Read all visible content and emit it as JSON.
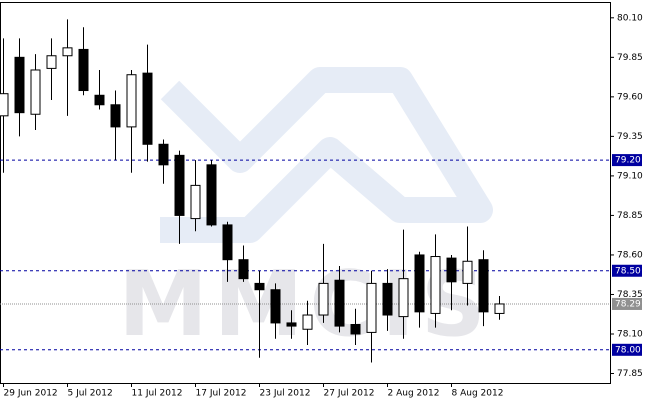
{
  "chart_data": {
    "type": "candlestick",
    "watermark": "MMCIS",
    "categories": [
      "29 Jun 2012",
      null,
      null,
      null,
      "5 Jul 2012",
      null,
      null,
      null,
      "11 Jul 2012",
      null,
      null,
      null,
      "17 Jul 2012",
      null,
      null,
      null,
      "23 Jul 2012",
      null,
      null,
      null,
      "27 Jul 2012",
      null,
      null,
      null,
      "2 Aug 2012",
      null,
      null,
      null,
      "8 Aug 2012",
      null,
      null,
      null
    ],
    "open": [
      79.48,
      79.85,
      79.49,
      79.78,
      79.86,
      79.9,
      79.61,
      79.55,
      79.41,
      79.75,
      79.3,
      79.23,
      78.83,
      79.17,
      78.79,
      78.57,
      78.42,
      78.38,
      78.17,
      78.13,
      78.22,
      78.44,
      78.16,
      78.11,
      78.42,
      78.21,
      78.6,
      78.23,
      78.58,
      78.42,
      78.57,
      78.23
    ],
    "high": [
      79.97,
      79.97,
      79.87,
      79.97,
      80.09,
      80.04,
      79.77,
      79.64,
      79.77,
      79.93,
      79.33,
      79.26,
      79.2,
      79.2,
      78.81,
      78.66,
      78.5,
      78.42,
      78.25,
      78.31,
      78.67,
      78.53,
      78.26,
      78.5,
      78.51,
      78.76,
      78.62,
      78.73,
      78.6,
      78.78,
      78.63,
      78.34
    ],
    "low": [
      79.12,
      79.35,
      79.39,
      79.58,
      79.48,
      79.61,
      79.52,
      79.2,
      79.12,
      79.19,
      79.05,
      78.67,
      78.75,
      78.78,
      78.43,
      78.43,
      77.95,
      78.07,
      78.07,
      78.03,
      78.17,
      78.11,
      78.03,
      77.92,
      78.12,
      78.07,
      78.14,
      78.14,
      78.25,
      78.28,
      78.15,
      78.19
    ],
    "close": [
      79.62,
      79.5,
      79.77,
      79.86,
      79.91,
      79.64,
      79.55,
      79.41,
      79.74,
      79.3,
      79.17,
      78.85,
      79.04,
      78.79,
      78.57,
      78.45,
      78.38,
      78.17,
      78.15,
      78.22,
      78.42,
      78.15,
      78.1,
      78.42,
      78.22,
      78.45,
      78.24,
      78.59,
      78.43,
      78.56,
      78.24,
      78.29
    ],
    "up_color": "#ffffff",
    "down_color": "#000000",
    "ylim": [
      77.79,
      80.2
    ],
    "yticks": [
      {
        "value": 80.1,
        "label": "80.10"
      },
      79.85,
      {
        "value": 79.6,
        "label": "79.60"
      },
      79.35,
      {
        "value": 79.1,
        "label": "79.10"
      },
      78.85,
      {
        "value": 78.6,
        "label": "78.60"
      },
      78.35,
      {
        "value": 78.1,
        "label": "78.10"
      },
      77.85
    ],
    "levels": [
      {
        "value": 79.2,
        "label": "79.20"
      },
      {
        "value": 78.5,
        "label": "78.50"
      },
      {
        "value": 78.0,
        "label": "78.00"
      }
    ],
    "level_color": "#0000a0",
    "last_price": {
      "value": 78.29,
      "label": "78.29"
    },
    "last_color": "#909090"
  }
}
